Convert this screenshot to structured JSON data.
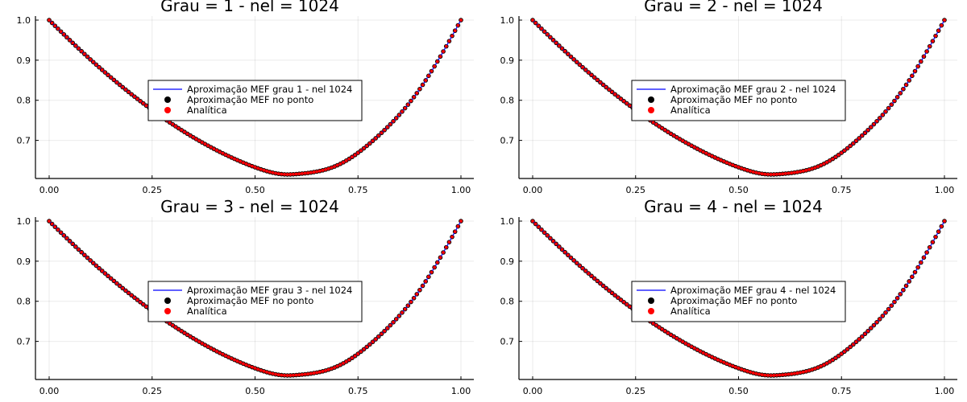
{
  "chart_data": [
    {
      "type": "line",
      "title": "Grau = 1 - nel = 1024",
      "xlim": [
        0,
        1
      ],
      "ylim": [
        0.605,
        1.01
      ],
      "xticks": [
        0.0,
        0.25,
        0.5,
        0.75,
        1.0
      ],
      "xtick_labels": [
        "0.00",
        "0.25",
        "0.50",
        "0.75",
        "1.00"
      ],
      "yticks": [
        0.7,
        0.8,
        0.9,
        1.0
      ],
      "ytick_labels": [
        "0.7",
        "0.8",
        "0.9",
        "1.0"
      ],
      "grid": true,
      "legend_position": "center",
      "x": [
        0.0,
        0.1,
        0.2,
        0.3,
        0.4,
        0.5,
        0.577,
        0.6,
        0.7,
        0.8,
        0.9,
        1.0
      ],
      "series": [
        {
          "name": "Aproximação MEF grau 1 - nel 1024",
          "kind": "line",
          "color": "#0000ff",
          "values": [
            1.0,
            0.902,
            0.815,
            0.74,
            0.679,
            0.633,
            0.615,
            0.616,
            0.638,
            0.712,
            0.828,
            1.0
          ]
        },
        {
          "name": "Aproximação MEF no ponto",
          "kind": "scatter",
          "color": "#000000",
          "values": [
            1.0,
            0.902,
            0.815,
            0.74,
            0.679,
            0.633,
            0.615,
            0.616,
            0.638,
            0.712,
            0.828,
            1.0
          ]
        },
        {
          "name": "Analítica",
          "kind": "scatter",
          "color": "#ff0000",
          "values": [
            1.0,
            0.902,
            0.815,
            0.74,
            0.679,
            0.633,
            0.615,
            0.616,
            0.638,
            0.712,
            0.828,
            1.0
          ]
        }
      ]
    },
    {
      "type": "line",
      "title": "Grau = 2 - nel = 1024",
      "xlim": [
        0,
        1
      ],
      "ylim": [
        0.605,
        1.01
      ],
      "xticks": [
        0.0,
        0.25,
        0.5,
        0.75,
        1.0
      ],
      "xtick_labels": [
        "0.00",
        "0.25",
        "0.50",
        "0.75",
        "1.00"
      ],
      "yticks": [
        0.7,
        0.8,
        0.9,
        1.0
      ],
      "ytick_labels": [
        "0.7",
        "0.8",
        "0.9",
        "1.0"
      ],
      "grid": true,
      "legend_position": "center",
      "x": [
        0.0,
        0.1,
        0.2,
        0.3,
        0.4,
        0.5,
        0.577,
        0.6,
        0.7,
        0.8,
        0.9,
        1.0
      ],
      "series": [
        {
          "name": "Aproximação MEF grau 2 - nel 1024",
          "kind": "line",
          "color": "#0000ff",
          "values": [
            1.0,
            0.902,
            0.815,
            0.74,
            0.679,
            0.633,
            0.615,
            0.616,
            0.638,
            0.712,
            0.828,
            1.0
          ]
        },
        {
          "name": "Aproximação MEF no ponto",
          "kind": "scatter",
          "color": "#000000",
          "values": [
            1.0,
            0.902,
            0.815,
            0.74,
            0.679,
            0.633,
            0.615,
            0.616,
            0.638,
            0.712,
            0.828,
            1.0
          ]
        },
        {
          "name": "Analítica",
          "kind": "scatter",
          "color": "#ff0000",
          "values": [
            1.0,
            0.902,
            0.815,
            0.74,
            0.679,
            0.633,
            0.615,
            0.616,
            0.638,
            0.712,
            0.828,
            1.0
          ]
        }
      ]
    },
    {
      "type": "line",
      "title": "Grau = 3 - nel = 1024",
      "xlim": [
        0,
        1
      ],
      "ylim": [
        0.605,
        1.01
      ],
      "xticks": [
        0.0,
        0.25,
        0.5,
        0.75,
        1.0
      ],
      "xtick_labels": [
        "0.00",
        "0.25",
        "0.50",
        "0.75",
        "1.00"
      ],
      "yticks": [
        0.7,
        0.8,
        0.9,
        1.0
      ],
      "ytick_labels": [
        "0.7",
        "0.8",
        "0.9",
        "1.0"
      ],
      "grid": true,
      "legend_position": "center",
      "x": [
        0.0,
        0.1,
        0.2,
        0.3,
        0.4,
        0.5,
        0.577,
        0.6,
        0.7,
        0.8,
        0.9,
        1.0
      ],
      "series": [
        {
          "name": "Aproximação MEF grau 3 - nel 1024",
          "kind": "line",
          "color": "#0000ff",
          "values": [
            1.0,
            0.902,
            0.815,
            0.74,
            0.679,
            0.633,
            0.615,
            0.616,
            0.638,
            0.712,
            0.828,
            1.0
          ]
        },
        {
          "name": "Aproximação MEF no ponto",
          "kind": "scatter",
          "color": "#000000",
          "values": [
            1.0,
            0.902,
            0.815,
            0.74,
            0.679,
            0.633,
            0.615,
            0.616,
            0.638,
            0.712,
            0.828,
            1.0
          ]
        },
        {
          "name": "Analítica",
          "kind": "scatter",
          "color": "#ff0000",
          "values": [
            1.0,
            0.902,
            0.815,
            0.74,
            0.679,
            0.633,
            0.615,
            0.616,
            0.638,
            0.712,
            0.828,
            1.0
          ]
        }
      ]
    },
    {
      "type": "line",
      "title": "Grau = 4 - nel = 1024",
      "xlim": [
        0,
        1
      ],
      "ylim": [
        0.605,
        1.01
      ],
      "xticks": [
        0.0,
        0.25,
        0.5,
        0.75,
        1.0
      ],
      "xtick_labels": [
        "0.00",
        "0.25",
        "0.50",
        "0.75",
        "1.00"
      ],
      "yticks": [
        0.7,
        0.8,
        0.9,
        1.0
      ],
      "ytick_labels": [
        "0.7",
        "0.8",
        "0.9",
        "1.0"
      ],
      "grid": true,
      "legend_position": "center",
      "x": [
        0.0,
        0.1,
        0.2,
        0.3,
        0.4,
        0.5,
        0.577,
        0.6,
        0.7,
        0.8,
        0.9,
        1.0
      ],
      "series": [
        {
          "name": "Aproximação MEF grau 4 - nel 1024",
          "kind": "line",
          "color": "#0000ff",
          "values": [
            1.0,
            0.902,
            0.815,
            0.74,
            0.679,
            0.633,
            0.615,
            0.616,
            0.638,
            0.712,
            0.828,
            1.0
          ]
        },
        {
          "name": "Aproximação MEF no ponto",
          "kind": "scatter",
          "color": "#000000",
          "values": [
            1.0,
            0.902,
            0.815,
            0.74,
            0.679,
            0.633,
            0.615,
            0.616,
            0.638,
            0.712,
            0.828,
            1.0
          ]
        },
        {
          "name": "Analítica",
          "kind": "scatter",
          "color": "#ff0000",
          "values": [
            1.0,
            0.902,
            0.815,
            0.74,
            0.679,
            0.633,
            0.615,
            0.616,
            0.638,
            0.712,
            0.828,
            1.0
          ]
        }
      ]
    }
  ]
}
